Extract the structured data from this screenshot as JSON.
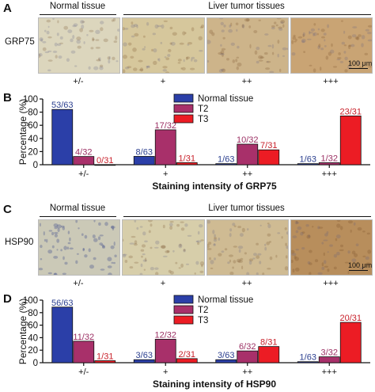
{
  "panels": {
    "A": {
      "letter": "A",
      "header_normal": "Normal tissue",
      "header_tumor": "Liver tumor tissues",
      "row_label": "GRP75",
      "intensities": [
        "+/-",
        "+",
        "++",
        "+++"
      ],
      "scale_text": "100 μm",
      "tile_colors": [
        "#dcd6bd",
        "#d6c79c",
        "#cdb48a",
        "#c9a474"
      ]
    },
    "C": {
      "letter": "C",
      "header_normal": "Normal tissue",
      "header_tumor": "Liver tumor tissues",
      "row_label": "HSP90",
      "intensities": [
        "+/-",
        "+",
        "++",
        "+++"
      ],
      "scale_text": "100 μm",
      "tile_colors": [
        "#cbc9b7",
        "#d7ceaa",
        "#cfbb93",
        "#b88e5c"
      ]
    }
  },
  "chart_data": [
    {
      "panel": "B",
      "type": "bar",
      "categories": [
        "+/-",
        "+",
        "++",
        "+++"
      ],
      "xlabel": "Staining intensity of GRP75",
      "ylabel": "Percentage (%)",
      "ylim": [
        0,
        100
      ],
      "yticks": [
        0,
        20,
        40,
        60,
        80,
        100
      ],
      "legend_position": "top",
      "series": [
        {
          "name": "Normal tissue",
          "color": "#2b3fa8",
          "label_color": "#2b3f8f",
          "values": [
            84.1,
            12.7,
            1.6,
            1.6
          ],
          "labels": [
            "53/63",
            "8/63",
            "1/63",
            "1/63"
          ]
        },
        {
          "name": "T2",
          "color": "#a8306a",
          "label_color": "#9b2f63",
          "values": [
            12.5,
            53.1,
            31.3,
            3.1
          ],
          "labels": [
            "4/32",
            "17/32",
            "10/32",
            "1/32"
          ]
        },
        {
          "name": "T3",
          "color": "#ec1c24",
          "label_color": "#c8202a",
          "values": [
            0,
            3.2,
            22.6,
            74.2
          ],
          "labels": [
            "0/31",
            "1/31",
            "7/31",
            "23/31"
          ]
        }
      ]
    },
    {
      "panel": "D",
      "type": "bar",
      "categories": [
        "+/-",
        "+",
        "++",
        "+++"
      ],
      "xlabel": "Staining intensity of HSP90",
      "ylabel": "Percentage (%)",
      "ylim": [
        0,
        100
      ],
      "yticks": [
        0,
        20,
        40,
        60,
        80,
        100
      ],
      "legend_position": "top",
      "series": [
        {
          "name": "Normal tissue",
          "color": "#2b3fa8",
          "label_color": "#2b3f8f",
          "values": [
            88.9,
            4.8,
            4.8,
            1.6
          ],
          "labels": [
            "56/63",
            "3/63",
            "3/63",
            "1/63"
          ]
        },
        {
          "name": "T2",
          "color": "#a8306a",
          "label_color": "#9b2f63",
          "values": [
            34.4,
            37.5,
            18.8,
            9.4
          ],
          "labels": [
            "11/32",
            "12/32",
            "6/32",
            "3/32"
          ]
        },
        {
          "name": "T3",
          "color": "#ec1c24",
          "label_color": "#c8202a",
          "values": [
            3.2,
            6.5,
            25.8,
            64.5
          ],
          "labels": [
            "1/31",
            "2/31",
            "8/31",
            "20/31"
          ]
        }
      ]
    }
  ]
}
